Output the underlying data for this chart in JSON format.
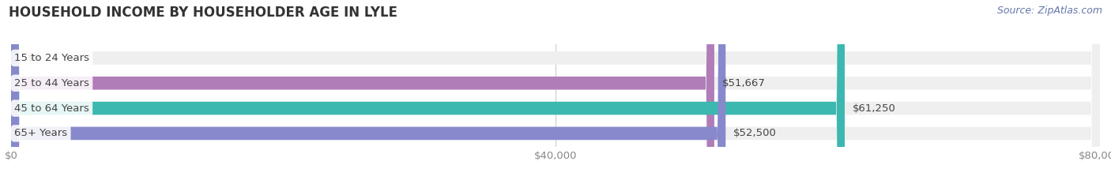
{
  "title": "HOUSEHOLD INCOME BY HOUSEHOLDER AGE IN LYLE",
  "source": "Source: ZipAtlas.com",
  "categories": [
    "15 to 24 Years",
    "25 to 44 Years",
    "45 to 64 Years",
    "65+ Years"
  ],
  "values": [
    0,
    51667,
    61250,
    52500
  ],
  "bar_colors": [
    "#a8c8e8",
    "#b07db8",
    "#3cb8b0",
    "#8888cc"
  ],
  "xlim": [
    0,
    80000
  ],
  "xticks": [
    0,
    40000,
    80000
  ],
  "xtick_labels": [
    "$0",
    "$40,000",
    "$80,000"
  ],
  "title_fontsize": 12,
  "source_fontsize": 9,
  "label_fontsize": 9.5,
  "tick_fontsize": 9.5,
  "background_color": "#ffffff",
  "bar_height": 0.52,
  "bg_color": "#efefef"
}
